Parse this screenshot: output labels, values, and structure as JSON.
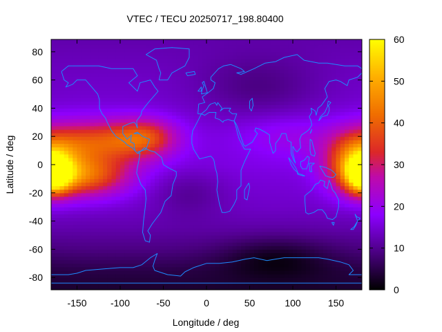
{
  "chart_data": {
    "type": "heatmap",
    "title": "VTEC / TECU 20250717_198.80400",
    "xlabel": "Longitude / deg",
    "ylabel": "Latitude / deg",
    "xlim": [
      -180,
      180
    ],
    "ylim": [
      -88.75,
      88.75
    ],
    "xticks": [
      -150,
      -100,
      -50,
      0,
      50,
      100,
      150
    ],
    "yticks": [
      -80,
      -60,
      -40,
      -20,
      0,
      20,
      40,
      60,
      80
    ],
    "colorbar": {
      "min": 0,
      "max": 60,
      "ticks": [
        0,
        10,
        20,
        30,
        40,
        50,
        60
      ]
    },
    "grid": false,
    "overlay": "coastlines",
    "colors": {
      "coastline": "#1e8cff",
      "low": "#000000",
      "high": "#ffff00"
    },
    "grid_spacing": {
      "lon": 5,
      "lat": 2.5
    },
    "field": [
      {
        "name": "background",
        "lat_profile": [
          [
            -90,
            3
          ],
          [
            -75,
            5
          ],
          [
            -60,
            9
          ],
          [
            -45,
            12
          ],
          [
            -30,
            14
          ],
          [
            0,
            16
          ],
          [
            30,
            15
          ],
          [
            60,
            14
          ],
          [
            75,
            13
          ],
          [
            90,
            12
          ]
        ]
      },
      {
        "name": "peak-pacific-west",
        "lon": -178,
        "lat": -7,
        "amp": 36,
        "sigma_lon": 14,
        "sigma_lat": 9
      },
      {
        "name": "crest-pacific-south",
        "lon": -140,
        "lat": -8,
        "amp": 24,
        "sigma_lon": 35,
        "sigma_lat": 10
      },
      {
        "name": "crest-pacific-north",
        "lon": -125,
        "lat": 16,
        "amp": 22,
        "sigma_lon": 45,
        "sigma_lat": 11
      },
      {
        "name": "crest-north-america",
        "lon": -70,
        "lat": 20,
        "amp": 16,
        "sigma_lon": 25,
        "sigma_lat": 9
      },
      {
        "name": "peak-west-pacific",
        "lon": 175,
        "lat": 2,
        "amp": 28,
        "sigma_lon": 25,
        "sigma_lat": 14
      },
      {
        "name": "band-india",
        "lon": 95,
        "lat": 20,
        "amp": 5,
        "sigma_lon": 40,
        "sigma_lat": 10
      },
      {
        "name": "low-south-atlantic",
        "lon": -20,
        "lat": -20,
        "amp": -4,
        "sigma_lon": 30,
        "sigma_lat": 12
      },
      {
        "name": "low-southern-ocean",
        "lon": 80,
        "lat": -65,
        "amp": -6,
        "sigma_lon": 45,
        "sigma_lat": 10
      },
      {
        "name": "low-north-asia",
        "lon": 60,
        "lat": 55,
        "amp": -5,
        "sigma_lon": 50,
        "sigma_lat": 15
      }
    ]
  }
}
